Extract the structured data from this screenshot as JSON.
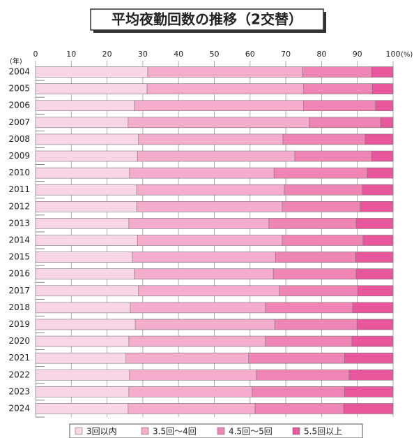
{
  "chart_data": {
    "type": "stacked-barh",
    "title": "平均夜勤回数の推移（2交替）",
    "x_unit": "(%)",
    "y_unit": "(年)",
    "categories": [
      "2004",
      "2005",
      "2006",
      "2007",
      "2008",
      "2009",
      "2010",
      "2011",
      "2012",
      "2013",
      "2014",
      "2015",
      "2016",
      "2017",
      "2018",
      "2019",
      "2020",
      "2021",
      "2022",
      "2023",
      "2024"
    ],
    "series": [
      {
        "name": "3回以内",
        "color": "#f9d6e5",
        "values": [
          31.4,
          31.2,
          27.7,
          25.9,
          28.8,
          28.5,
          26.3,
          28.3,
          28.3,
          26.1,
          28.5,
          27.1,
          27.7,
          28.8,
          26.5,
          27.9,
          26.1,
          25.3,
          26.3,
          26.1,
          25.9
        ]
      },
      {
        "name": "3.5回〜4回",
        "color": "#f4adcc",
        "values": [
          43.3,
          43.8,
          47.3,
          50.7,
          40.4,
          44.0,
          40.4,
          41.3,
          40.7,
          39.2,
          40.5,
          40.0,
          38.8,
          39.4,
          37.8,
          39.0,
          38.2,
          34.3,
          35.5,
          34.5,
          35.5
        ]
      },
      {
        "name": "4.5回〜5回",
        "color": "#ee85b4",
        "values": [
          19.3,
          19.2,
          20.1,
          19.9,
          23.0,
          21.5,
          26.1,
          21.8,
          21.8,
          24.4,
          22.6,
          22.4,
          23.2,
          21.9,
          24.4,
          23.0,
          24.2,
          26.8,
          25.9,
          25.8,
          24.8
        ]
      },
      {
        "name": "5.5回以上",
        "color": "#e8579b",
        "values": [
          6.0,
          5.8,
          4.9,
          3.5,
          7.8,
          6.0,
          7.2,
          8.6,
          9.2,
          10.3,
          8.4,
          10.5,
          10.3,
          9.9,
          11.3,
          10.1,
          11.5,
          13.6,
          12.3,
          13.6,
          13.8
        ]
      }
    ],
    "xlim": [
      0,
      100
    ],
    "xticks": [
      0,
      10,
      20,
      30,
      40,
      50,
      60,
      70,
      80,
      90,
      100
    ],
    "grid": true
  }
}
